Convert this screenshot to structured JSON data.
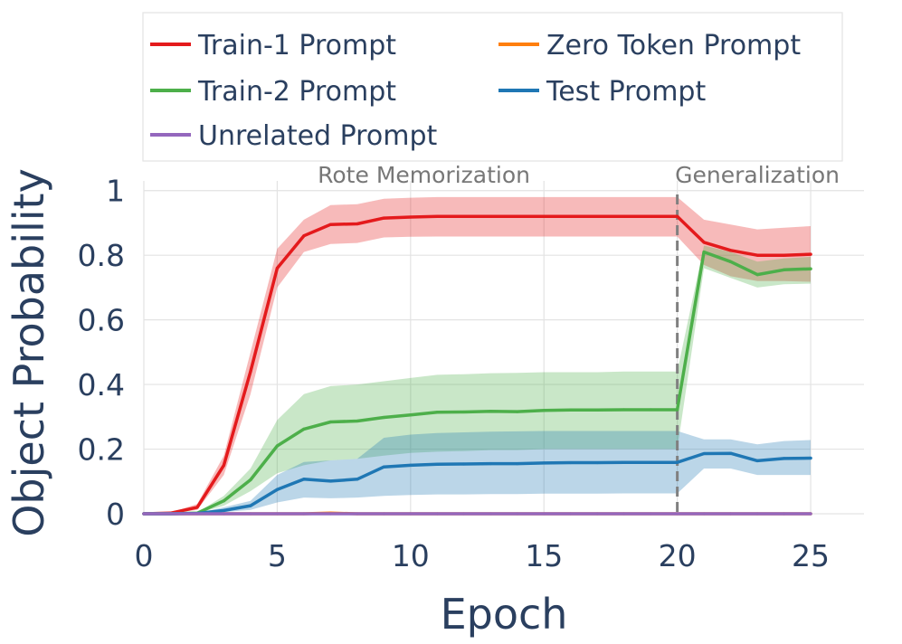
{
  "chart_data": {
    "type": "line",
    "title": "",
    "xlabel": "Epoch",
    "ylabel": "Object Probability",
    "xlim": [
      0,
      27
    ],
    "ylim": [
      0,
      1.03
    ],
    "x_ticks": [
      0,
      5,
      10,
      15,
      20,
      25
    ],
    "x_tick_labels": [
      "0",
      "5",
      "10",
      "15",
      "20",
      "25"
    ],
    "y_ticks": [
      0,
      0.2,
      0.4,
      0.6,
      0.8,
      1
    ],
    "y_tick_labels": [
      "0",
      "0.2",
      "0.4",
      "0.6",
      "0.8",
      "1"
    ],
    "grid": true,
    "legend_position": "top",
    "phase_divider": {
      "x": 20,
      "style": "dashed",
      "color": "#808080"
    },
    "phase_labels": [
      {
        "text": "Rote Memorization",
        "x": 10.5
      },
      {
        "text": "Generalization",
        "x": 23
      }
    ],
    "x": [
      0,
      1,
      2,
      3,
      4,
      5,
      6,
      7,
      8,
      9,
      10,
      11,
      12,
      13,
      14,
      15,
      16,
      17,
      18,
      19,
      20,
      21,
      22,
      23,
      24,
      25
    ],
    "series": [
      {
        "name": "Train-1 Prompt",
        "color": "#e41a1c",
        "values": [
          0,
          0.002,
          0.02,
          0.15,
          0.44,
          0.76,
          0.86,
          0.895,
          0.897,
          0.915,
          0.918,
          0.92,
          0.92,
          0.92,
          0.92,
          0.92,
          0.92,
          0.92,
          0.92,
          0.92,
          0.92,
          0.84,
          0.815,
          0.8,
          0.8,
          0.803
        ],
        "lower": [
          0,
          0.001,
          0.012,
          0.12,
          0.37,
          0.7,
          0.81,
          0.835,
          0.838,
          0.855,
          0.857,
          0.858,
          0.858,
          0.858,
          0.858,
          0.858,
          0.858,
          0.858,
          0.858,
          0.858,
          0.858,
          0.77,
          0.735,
          0.72,
          0.72,
          0.718
        ],
        "upper": [
          0,
          0.004,
          0.03,
          0.18,
          0.5,
          0.82,
          0.91,
          0.955,
          0.958,
          0.975,
          0.978,
          0.98,
          0.98,
          0.98,
          0.98,
          0.98,
          0.98,
          0.98,
          0.98,
          0.98,
          0.98,
          0.91,
          0.895,
          0.88,
          0.885,
          0.89
        ]
      },
      {
        "name": "Zero Token Prompt",
        "color": "#ff7f0e",
        "values": [
          0,
          0,
          0,
          0,
          0,
          0,
          0,
          0.002,
          0,
          0,
          0,
          0,
          0,
          0,
          0,
          0,
          0,
          0,
          0,
          0,
          0,
          0,
          0,
          0,
          0,
          0
        ],
        "lower": [
          0,
          0,
          0,
          0,
          0,
          0,
          0,
          0,
          0,
          0,
          0,
          0,
          0,
          0,
          0,
          0,
          0,
          0,
          0,
          0,
          0,
          0,
          0,
          0,
          0,
          0
        ],
        "upper": [
          0,
          0,
          0,
          0,
          0,
          0,
          0,
          0.006,
          0.002,
          0,
          0,
          0,
          0,
          0,
          0,
          0,
          0,
          0,
          0,
          0,
          0,
          0,
          0,
          0,
          0,
          0
        ]
      },
      {
        "name": "Train-2 Prompt",
        "color": "#4daf4a",
        "values": [
          0,
          0,
          0.002,
          0.04,
          0.105,
          0.21,
          0.262,
          0.284,
          0.287,
          0.298,
          0.306,
          0.314,
          0.315,
          0.317,
          0.316,
          0.32,
          0.321,
          0.321,
          0.322,
          0.322,
          0.322,
          0.81,
          0.78,
          0.74,
          0.755,
          0.758
        ],
        "lower": [
          0,
          0,
          0.001,
          0.025,
          0.07,
          0.125,
          0.15,
          0.165,
          0.17,
          0.18,
          0.188,
          0.192,
          0.194,
          0.197,
          0.197,
          0.2,
          0.2,
          0.2,
          0.2,
          0.2,
          0.2,
          0.76,
          0.73,
          0.7,
          0.71,
          0.712
        ],
        "upper": [
          0,
          0,
          0.004,
          0.055,
          0.14,
          0.29,
          0.37,
          0.395,
          0.4,
          0.41,
          0.42,
          0.43,
          0.432,
          0.435,
          0.436,
          0.438,
          0.438,
          0.438,
          0.44,
          0.44,
          0.44,
          0.83,
          0.81,
          0.78,
          0.79,
          0.795
        ]
      },
      {
        "name": "Test Prompt",
        "color": "#1f77b4",
        "values": [
          0,
          0,
          0.001,
          0.01,
          0.025,
          0.075,
          0.107,
          0.101,
          0.107,
          0.145,
          0.15,
          0.153,
          0.154,
          0.155,
          0.155,
          0.157,
          0.158,
          0.158,
          0.159,
          0.159,
          0.159,
          0.186,
          0.187,
          0.164,
          0.171,
          0.172
        ],
        "lower": [
          0,
          0,
          0,
          0.005,
          0.012,
          0.035,
          0.05,
          0.048,
          0.05,
          0.055,
          0.058,
          0.06,
          0.06,
          0.061,
          0.061,
          0.062,
          0.062,
          0.062,
          0.063,
          0.063,
          0.063,
          0.14,
          0.14,
          0.12,
          0.12,
          0.12
        ],
        "upper": [
          0,
          0,
          0.002,
          0.02,
          0.04,
          0.12,
          0.16,
          0.165,
          0.17,
          0.235,
          0.245,
          0.25,
          0.252,
          0.254,
          0.255,
          0.256,
          0.256,
          0.256,
          0.256,
          0.256,
          0.256,
          0.23,
          0.23,
          0.215,
          0.225,
          0.228
        ]
      },
      {
        "name": "Unrelated Prompt",
        "color": "#9467bd",
        "values": [
          0,
          0,
          0,
          0,
          0,
          0,
          0,
          0,
          0,
          0,
          0,
          0,
          0,
          0,
          0,
          0,
          0,
          0,
          0,
          0,
          0,
          0,
          0,
          0,
          0,
          0
        ],
        "lower": [
          0,
          0,
          0,
          0,
          0,
          0,
          0,
          0,
          0,
          0,
          0,
          0,
          0,
          0,
          0,
          0,
          0,
          0,
          0,
          0,
          0,
          0,
          0,
          0,
          0,
          0
        ],
        "upper": [
          0,
          0,
          0,
          0,
          0,
          0,
          0,
          0,
          0,
          0,
          0,
          0,
          0,
          0,
          0,
          0,
          0,
          0,
          0,
          0,
          0,
          0,
          0,
          0,
          0,
          0
        ]
      }
    ],
    "legend": [
      {
        "label": "Train-1 Prompt",
        "series": 0
      },
      {
        "label": "Zero Token Prompt",
        "series": 1
      },
      {
        "label": "Train-2 Prompt",
        "series": 2
      },
      {
        "label": "Test Prompt",
        "series": 3
      },
      {
        "label": "Unrelated Prompt",
        "series": 4
      }
    ]
  }
}
